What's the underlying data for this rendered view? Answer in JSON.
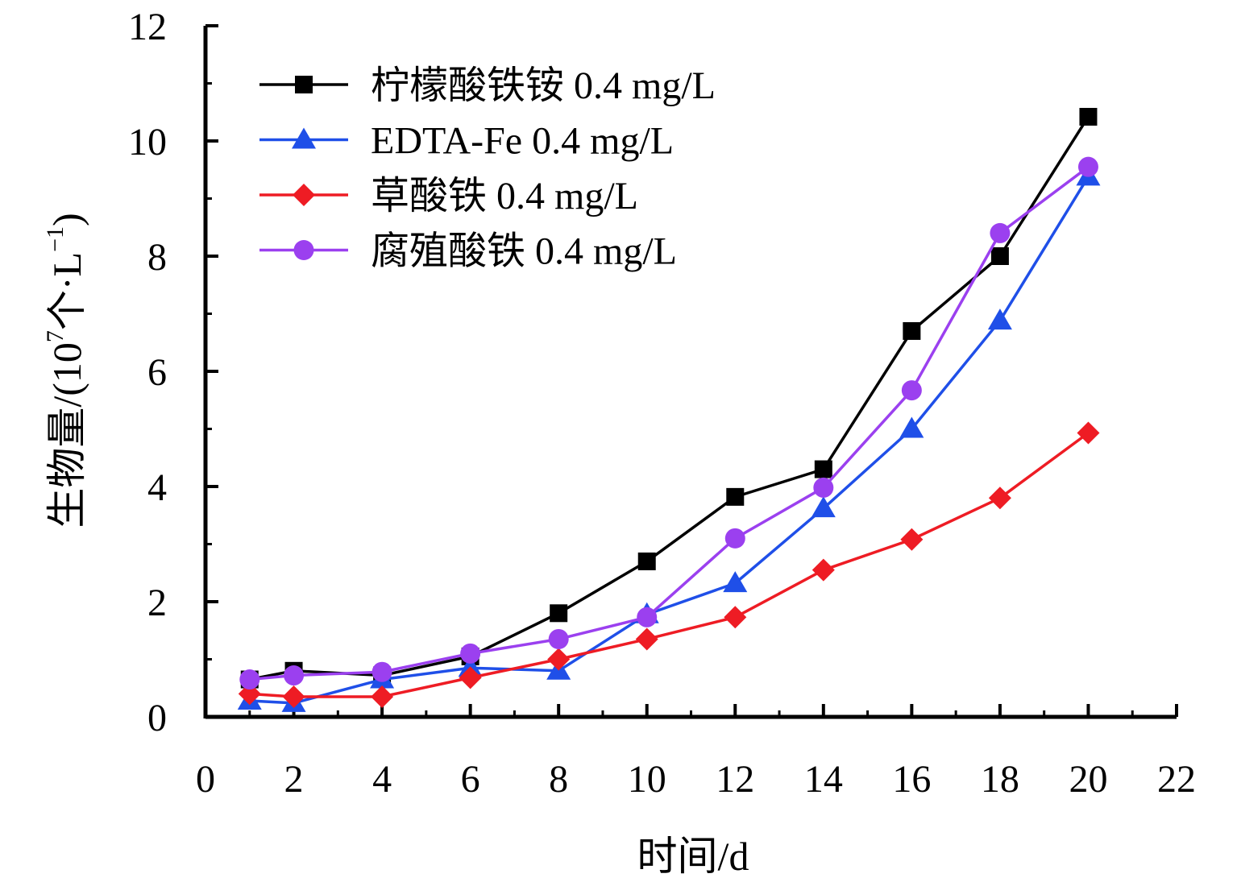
{
  "chart_data": {
    "type": "line",
    "xlabel": "时间/d",
    "ylabel": {
      "main": "生物量/(10",
      "sup1": "7",
      "mid": "个·L",
      "sup2": "−1",
      "end": ")"
    },
    "xlim": [
      0,
      22
    ],
    "ylim": [
      0,
      12
    ],
    "xticks": [
      0,
      2,
      4,
      6,
      8,
      10,
      12,
      14,
      16,
      18,
      20,
      22
    ],
    "yticks": [
      0,
      2,
      4,
      6,
      8,
      10,
      12
    ],
    "x_minor_step": 1,
    "y_minor_step": 1,
    "legend_position": "top-left",
    "series": [
      {
        "name": "柠檬酸铁铵 0.4 mg/L",
        "color": "#000000",
        "marker": "square",
        "x": [
          1,
          2,
          4,
          6,
          8,
          10,
          12,
          14,
          16,
          18,
          20
        ],
        "y": [
          0.65,
          0.8,
          0.72,
          1.05,
          1.8,
          2.7,
          3.82,
          4.3,
          6.7,
          8.0,
          10.42
        ]
      },
      {
        "name": "EDTA-Fe 0.4 mg/L",
        "color": "#1f4fe8",
        "marker": "triangle",
        "x": [
          1,
          2,
          4,
          6,
          8,
          10,
          12,
          14,
          16,
          18,
          20
        ],
        "y": [
          0.28,
          0.24,
          0.65,
          0.85,
          0.8,
          1.78,
          2.32,
          3.62,
          5.0,
          6.88,
          9.38
        ]
      },
      {
        "name": "草酸铁 0.4 mg/L",
        "color": "#ee1c24",
        "marker": "diamond",
        "x": [
          1,
          2,
          4,
          6,
          8,
          10,
          12,
          14,
          16,
          18,
          20
        ],
        "y": [
          0.4,
          0.35,
          0.35,
          0.68,
          1.0,
          1.35,
          1.73,
          2.55,
          3.08,
          3.8,
          4.93
        ]
      },
      {
        "name": "腐殖酸铁 0.4 mg/L",
        "color": "#9b40ef",
        "marker": "circle",
        "x": [
          1,
          2,
          4,
          6,
          8,
          10,
          12,
          14,
          16,
          18,
          20
        ],
        "y": [
          0.65,
          0.72,
          0.78,
          1.1,
          1.35,
          1.73,
          3.1,
          3.98,
          5.67,
          8.4,
          9.55
        ]
      }
    ]
  }
}
